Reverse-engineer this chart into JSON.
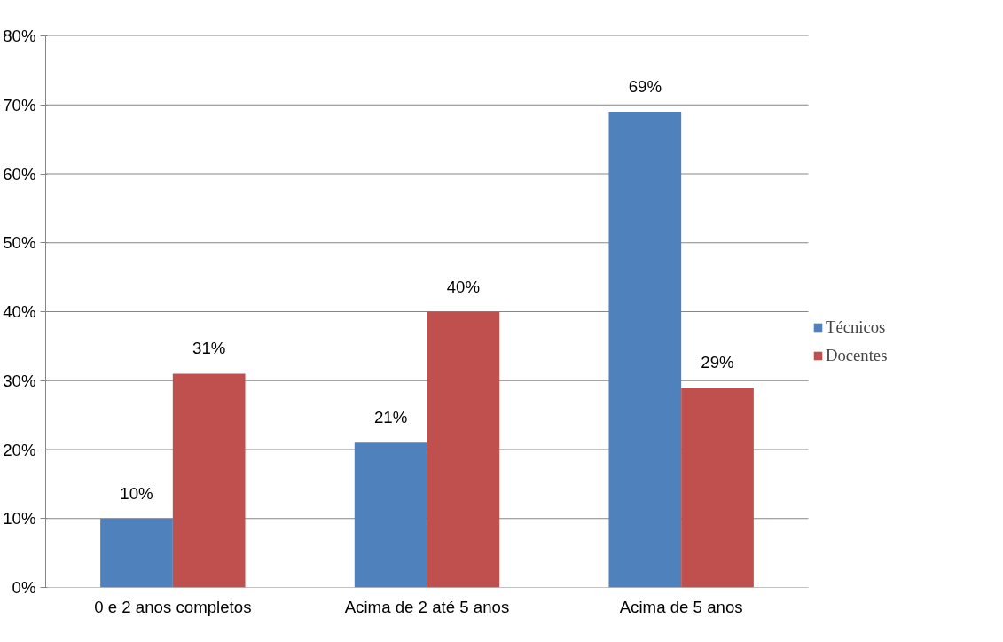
{
  "chart_data": {
    "type": "bar",
    "categories": [
      "0 e 2 anos completos",
      "Acima de 2 até 5 anos",
      "Acima de 5 anos"
    ],
    "series": [
      {
        "name": "Técnicos",
        "color": "#4f81bd",
        "values": [
          10,
          21,
          69
        ],
        "value_labels": [
          "10%",
          "21%",
          "69%"
        ]
      },
      {
        "name": "Docentes",
        "color": "#c0504d",
        "values": [
          31,
          40,
          29
        ],
        "value_labels": [
          "31%",
          "40%",
          "29%"
        ]
      }
    ],
    "ylim": [
      0,
      80
    ],
    "yticks": [
      {
        "value": 0,
        "label": "0%"
      },
      {
        "value": 10,
        "label": "10%"
      },
      {
        "value": 20,
        "label": "20%"
      },
      {
        "value": 30,
        "label": "30%"
      },
      {
        "value": 40,
        "label": "40%"
      },
      {
        "value": 50,
        "label": "50%"
      },
      {
        "value": 60,
        "label": "60%"
      },
      {
        "value": 70,
        "label": "70%"
      },
      {
        "value": 80,
        "label": "80%"
      }
    ],
    "grid": "y",
    "legend": "right"
  }
}
